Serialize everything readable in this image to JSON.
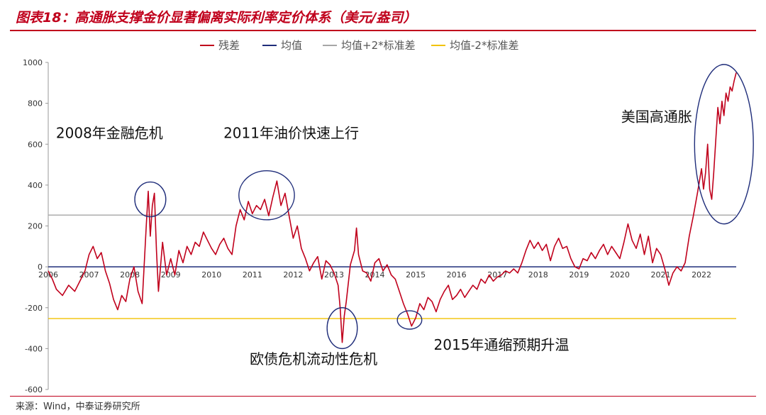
{
  "header": {
    "title": "图表18：高通胀支撑金价显著偏离实际利率定价体系（美元/盎司）"
  },
  "footer": {
    "source": "来源：Wind，中泰证券研究所"
  },
  "chart_data": {
    "type": "line",
    "ylim": [
      -600,
      1000
    ],
    "yticks": [
      "1000",
      "800",
      "600",
      "400",
      "200",
      "0",
      "-200",
      "-400",
      "-600"
    ],
    "xticks": [
      "2006",
      "2007",
      "2008",
      "2009",
      "2010",
      "2011",
      "2012",
      "2013",
      "2014",
      "2015",
      "2016",
      "2017",
      "2018",
      "2019",
      "2020",
      "2021",
      "2022"
    ],
    "xlim": [
      2006,
      2022.85
    ],
    "legend_position": "top-center",
    "series": [
      {
        "name": "残差",
        "color": "#c0001c",
        "points": [
          [
            2006.0,
            -20
          ],
          [
            2006.1,
            -60
          ],
          [
            2006.2,
            -110
          ],
          [
            2006.35,
            -140
          ],
          [
            2006.5,
            -90
          ],
          [
            2006.65,
            -120
          ],
          [
            2006.8,
            -60
          ],
          [
            2006.9,
            -20
          ],
          [
            2007.0,
            60
          ],
          [
            2007.1,
            100
          ],
          [
            2007.2,
            40
          ],
          [
            2007.3,
            70
          ],
          [
            2007.4,
            -20
          ],
          [
            2007.5,
            -80
          ],
          [
            2007.6,
            -160
          ],
          [
            2007.7,
            -210
          ],
          [
            2007.8,
            -140
          ],
          [
            2007.9,
            -170
          ],
          [
            2008.0,
            -60
          ],
          [
            2008.1,
            0
          ],
          [
            2008.2,
            -120
          ],
          [
            2008.3,
            -180
          ],
          [
            2008.4,
            200
          ],
          [
            2008.45,
            370
          ],
          [
            2008.5,
            150
          ],
          [
            2008.55,
            300
          ],
          [
            2008.6,
            360
          ],
          [
            2008.65,
            80
          ],
          [
            2008.7,
            -120
          ],
          [
            2008.8,
            120
          ],
          [
            2008.9,
            -40
          ],
          [
            2009.0,
            40
          ],
          [
            2009.1,
            -40
          ],
          [
            2009.2,
            80
          ],
          [
            2009.3,
            20
          ],
          [
            2009.4,
            100
          ],
          [
            2009.5,
            60
          ],
          [
            2009.6,
            120
          ],
          [
            2009.7,
            100
          ],
          [
            2009.8,
            170
          ],
          [
            2009.9,
            130
          ],
          [
            2010.0,
            90
          ],
          [
            2010.1,
            60
          ],
          [
            2010.2,
            110
          ],
          [
            2010.3,
            140
          ],
          [
            2010.4,
            90
          ],
          [
            2010.5,
            60
          ],
          [
            2010.6,
            200
          ],
          [
            2010.7,
            280
          ],
          [
            2010.8,
            230
          ],
          [
            2010.9,
            320
          ],
          [
            2011.0,
            260
          ],
          [
            2011.1,
            300
          ],
          [
            2011.2,
            280
          ],
          [
            2011.3,
            330
          ],
          [
            2011.4,
            250
          ],
          [
            2011.5,
            340
          ],
          [
            2011.6,
            420
          ],
          [
            2011.7,
            300
          ],
          [
            2011.8,
            360
          ],
          [
            2011.9,
            250
          ],
          [
            2012.0,
            140
          ],
          [
            2012.1,
            200
          ],
          [
            2012.2,
            90
          ],
          [
            2012.3,
            40
          ],
          [
            2012.4,
            -20
          ],
          [
            2012.5,
            20
          ],
          [
            2012.6,
            50
          ],
          [
            2012.7,
            -60
          ],
          [
            2012.8,
            30
          ],
          [
            2012.9,
            10
          ],
          [
            2013.0,
            -30
          ],
          [
            2013.1,
            -90
          ],
          [
            2013.15,
            -200
          ],
          [
            2013.2,
            -370
          ],
          [
            2013.25,
            -240
          ],
          [
            2013.3,
            -170
          ],
          [
            2013.4,
            10
          ],
          [
            2013.5,
            80
          ],
          [
            2013.55,
            190
          ],
          [
            2013.6,
            60
          ],
          [
            2013.7,
            -20
          ],
          [
            2013.8,
            -30
          ],
          [
            2013.9,
            -70
          ],
          [
            2014.0,
            20
          ],
          [
            2014.1,
            40
          ],
          [
            2014.2,
            -20
          ],
          [
            2014.3,
            10
          ],
          [
            2014.4,
            -40
          ],
          [
            2014.5,
            -60
          ],
          [
            2014.6,
            -120
          ],
          [
            2014.7,
            -180
          ],
          [
            2014.8,
            -230
          ],
          [
            2014.9,
            -290
          ],
          [
            2015.0,
            -250
          ],
          [
            2015.1,
            -180
          ],
          [
            2015.2,
            -210
          ],
          [
            2015.3,
            -150
          ],
          [
            2015.4,
            -170
          ],
          [
            2015.5,
            -220
          ],
          [
            2015.6,
            -160
          ],
          [
            2015.7,
            -120
          ],
          [
            2015.8,
            -90
          ],
          [
            2015.9,
            -160
          ],
          [
            2016.0,
            -140
          ],
          [
            2016.1,
            -110
          ],
          [
            2016.2,
            -150
          ],
          [
            2016.3,
            -120
          ],
          [
            2016.4,
            -90
          ],
          [
            2016.5,
            -110
          ],
          [
            2016.6,
            -60
          ],
          [
            2016.7,
            -80
          ],
          [
            2016.8,
            -40
          ],
          [
            2016.9,
            -70
          ],
          [
            2017.0,
            -50
          ],
          [
            2017.1,
            -40
          ],
          [
            2017.2,
            -20
          ],
          [
            2017.3,
            -30
          ],
          [
            2017.4,
            -10
          ],
          [
            2017.5,
            -30
          ],
          [
            2017.6,
            20
          ],
          [
            2017.7,
            80
          ],
          [
            2017.8,
            130
          ],
          [
            2017.9,
            90
          ],
          [
            2018.0,
            120
          ],
          [
            2018.1,
            80
          ],
          [
            2018.2,
            110
          ],
          [
            2018.3,
            30
          ],
          [
            2018.4,
            100
          ],
          [
            2018.5,
            140
          ],
          [
            2018.6,
            90
          ],
          [
            2018.7,
            100
          ],
          [
            2018.8,
            40
          ],
          [
            2018.9,
            0
          ],
          [
            2019.0,
            -10
          ],
          [
            2019.1,
            40
          ],
          [
            2019.2,
            30
          ],
          [
            2019.3,
            70
          ],
          [
            2019.4,
            40
          ],
          [
            2019.5,
            80
          ],
          [
            2019.6,
            110
          ],
          [
            2019.7,
            60
          ],
          [
            2019.8,
            100
          ],
          [
            2019.9,
            70
          ],
          [
            2020.0,
            40
          ],
          [
            2020.1,
            120
          ],
          [
            2020.2,
            210
          ],
          [
            2020.3,
            130
          ],
          [
            2020.4,
            90
          ],
          [
            2020.5,
            160
          ],
          [
            2020.6,
            60
          ],
          [
            2020.7,
            150
          ],
          [
            2020.8,
            20
          ],
          [
            2020.9,
            90
          ],
          [
            2021.0,
            60
          ],
          [
            2021.1,
            -10
          ],
          [
            2021.2,
            -90
          ],
          [
            2021.3,
            -30
          ],
          [
            2021.4,
            0
          ],
          [
            2021.5,
            -20
          ],
          [
            2021.6,
            20
          ],
          [
            2021.7,
            150
          ],
          [
            2021.8,
            250
          ],
          [
            2021.9,
            360
          ],
          [
            2022.0,
            480
          ],
          [
            2022.05,
            380
          ],
          [
            2022.1,
            460
          ],
          [
            2022.15,
            600
          ],
          [
            2022.2,
            380
          ],
          [
            2022.25,
            330
          ],
          [
            2022.3,
            460
          ],
          [
            2022.35,
            620
          ],
          [
            2022.4,
            780
          ],
          [
            2022.45,
            700
          ],
          [
            2022.5,
            810
          ],
          [
            2022.55,
            740
          ],
          [
            2022.6,
            850
          ],
          [
            2022.65,
            810
          ],
          [
            2022.7,
            880
          ],
          [
            2022.75,
            860
          ],
          [
            2022.8,
            910
          ],
          [
            2022.85,
            950
          ]
        ]
      },
      {
        "name": "均值",
        "color": "#1f2d7a",
        "value": 0
      },
      {
        "name": "均值+2*标准差",
        "color": "#a6a6a6",
        "value": 253
      },
      {
        "name": "均值-2*标准差",
        "color": "#f2c200",
        "value": -253
      }
    ],
    "annotations": [
      {
        "text": "2008年金融危机",
        "x": 2007.5,
        "y": 630
      },
      {
        "text": "2011年油价快速上行",
        "x": 2011.95,
        "y": 630
      },
      {
        "text": "美国高通胀",
        "x": 2020.9,
        "y": 710
      },
      {
        "text": "欧债危机流动性危机",
        "x": 2012.5,
        "y": -475
      },
      {
        "text": "2015年通缩预期升温",
        "x": 2017.1,
        "y": -405
      }
    ],
    "highlight_circles": [
      {
        "x": 2008.5,
        "y": 330,
        "rx": 0.38,
        "ry": 85
      },
      {
        "x": 2011.35,
        "y": 350,
        "rx": 0.68,
        "ry": 120
      },
      {
        "x": 2013.2,
        "y": -300,
        "rx": 0.37,
        "ry": 100
      },
      {
        "x": 2014.85,
        "y": -260,
        "rx": 0.3,
        "ry": 45
      },
      {
        "x": 2022.55,
        "y": 600,
        "rx": 0.72,
        "ry": 390
      }
    ]
  }
}
